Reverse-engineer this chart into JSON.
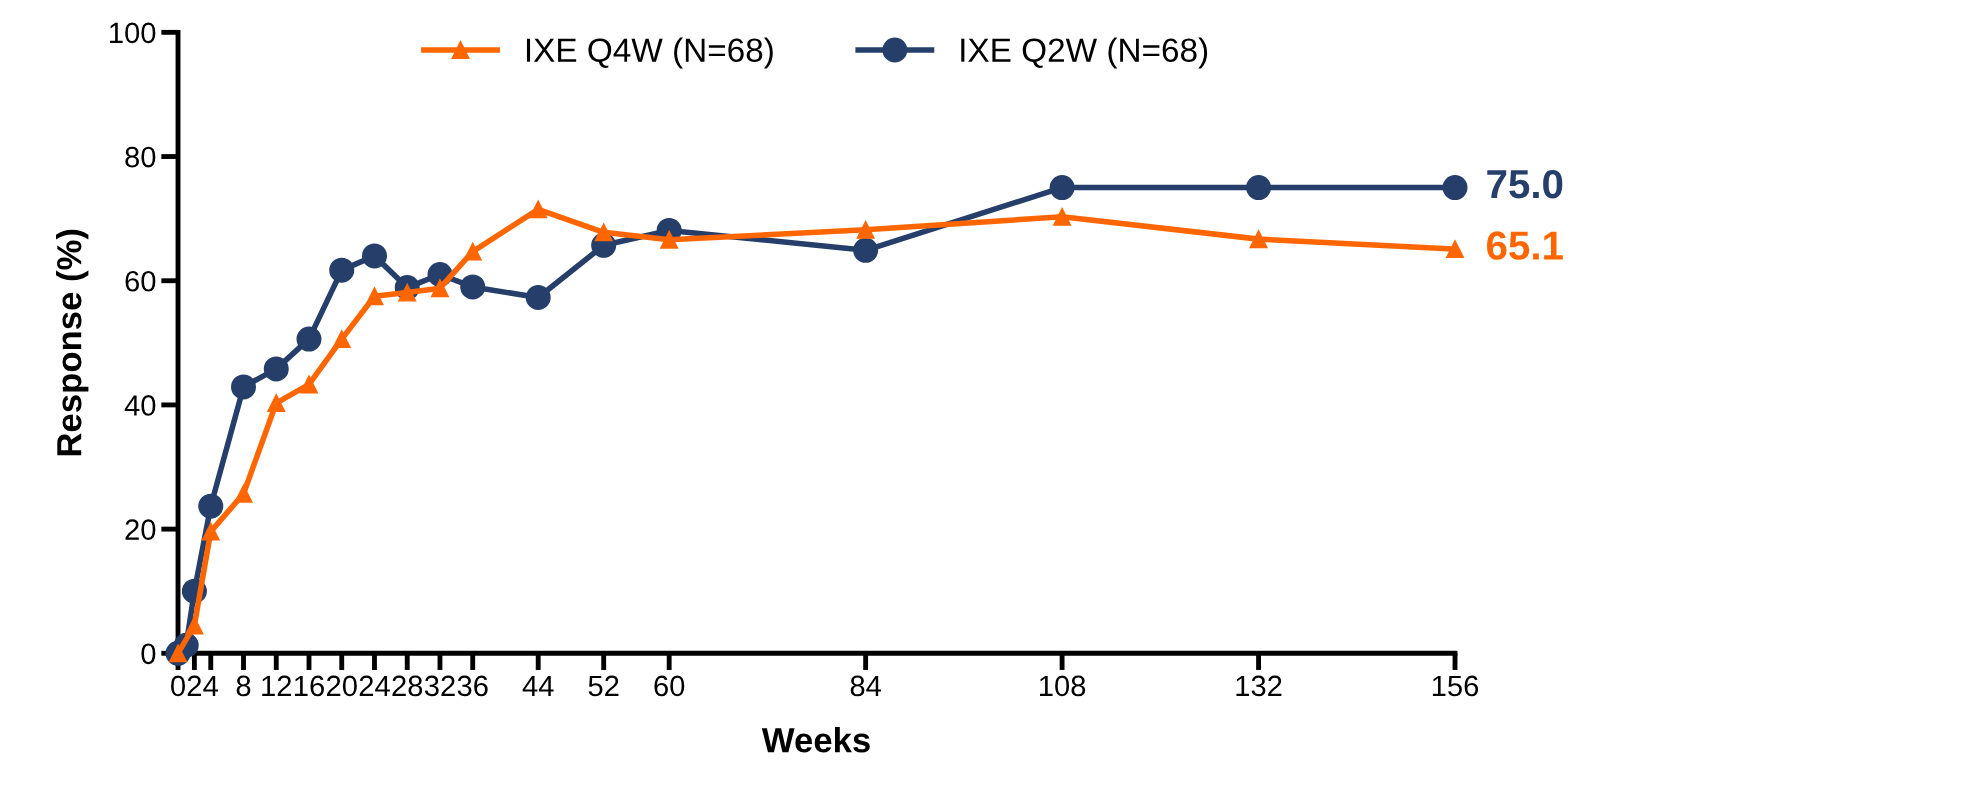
{
  "chart_data": {
    "type": "line",
    "xlabel": "Weeks",
    "ylabel": "Response (%)",
    "xlim": [
      0,
      156
    ],
    "xticks": [
      0,
      2,
      4,
      8,
      12,
      16,
      20,
      24,
      28,
      32,
      36,
      44,
      52,
      60,
      84,
      108,
      132,
      156
    ],
    "ylim": [
      0,
      100
    ],
    "yticks": [
      0,
      20,
      40,
      60,
      80,
      100
    ],
    "grid": false,
    "legend": "top",
    "line_style": "solid",
    "series": [
      {
        "name": "IXE Q4W (N=68)",
        "color": "#ff6600",
        "marker": "triangle",
        "x": [
          0,
          2,
          4,
          8,
          12,
          16,
          20,
          24,
          28,
          32,
          36,
          44,
          52,
          60,
          84,
          108,
          132,
          156
        ],
        "values": [
          0,
          4.5,
          19.6,
          25.7,
          40.3,
          43.3,
          50.6,
          57.5,
          58.1,
          58.8,
          64.7,
          71.5,
          67.8,
          66.6,
          68.2,
          70.3,
          66.7,
          65.1
        ]
      },
      {
        "name": "IXE Q2W (N=68)",
        "color": "#253f6a",
        "marker": "circle",
        "x": [
          0,
          1,
          2,
          4,
          8,
          12,
          16,
          20,
          24,
          28,
          32,
          36,
          44,
          52,
          60,
          84,
          108,
          132,
          156
        ],
        "values": [
          0,
          1.3,
          10.0,
          23.7,
          42.9,
          45.8,
          50.6,
          61.7,
          64.0,
          58.9,
          61.0,
          59.0,
          57.3,
          65.7,
          68.1,
          64.9,
          75.0,
          75.0,
          75.0
        ]
      }
    ],
    "annotations": [
      {
        "text": "75.0",
        "x": 156,
        "y": 75.0
      },
      {
        "text": "65.1",
        "x": 156,
        "y": 65.1
      }
    ]
  }
}
